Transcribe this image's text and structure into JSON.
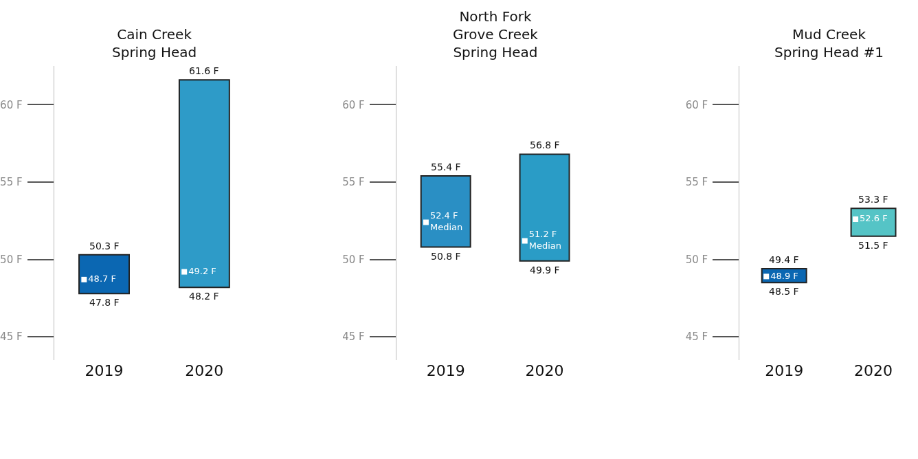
{
  "chart_data": [
    {
      "type": "bar",
      "title": "Cain Creek\nSpring Head",
      "categories": [
        "2019",
        "2020"
      ],
      "ylim": [
        43.5,
        62.5
      ],
      "yticks": [
        {
          "value": 45,
          "label": "45 F"
        },
        {
          "value": 50,
          "label": "50 F"
        },
        {
          "value": 55,
          "label": "55 F"
        },
        {
          "value": 60,
          "label": "60 F"
        }
      ],
      "colors": [
        "#0b67b2",
        "#2e9bc8"
      ],
      "base": [
        47.8,
        48.2
      ],
      "values": [
        2.5,
        13.4
      ],
      "annotations": [
        {
          "text": "50.3 F",
          "x": "2019",
          "y": 50.3
        },
        {
          "text": "61.6 F",
          "x": "2020",
          "y": 61.6
        },
        {
          "text": "47.8 F",
          "x": "2019",
          "y": 47.8
        },
        {
          "text": "48.2 F",
          "x": "2020",
          "y": 48.2
        }
      ],
      "series": [
        {
          "type": "scatter",
          "marker": "square",
          "color": "#ffffff",
          "values": [
            48.7,
            49.2
          ],
          "value_labels": [
            "48.7 F",
            "49.2 F"
          ]
        }
      ]
    },
    {
      "type": "bar",
      "title": "North Fork\nGrove Creek\nSpring Head",
      "categories": [
        "2019",
        "2020"
      ],
      "ylim": [
        43.5,
        62.5
      ],
      "yticks": [
        {
          "value": 45,
          "label": "45 F"
        },
        {
          "value": 50,
          "label": "50 F"
        },
        {
          "value": 55,
          "label": "55 F"
        },
        {
          "value": 60,
          "label": "60 F"
        }
      ],
      "colors": [
        "#2a8fc4",
        "#2a9cc6"
      ],
      "base": [
        50.8,
        49.9
      ],
      "values": [
        4.6,
        6.9
      ],
      "annotations": [
        {
          "text": "55.4 F",
          "x": "2019",
          "y": 55.4
        },
        {
          "text": "56.8 F",
          "x": "2020",
          "y": 56.8
        },
        {
          "text": "50.8 F",
          "x": "2019",
          "y": 50.8
        },
        {
          "text": "49.9 F",
          "x": "2020",
          "y": 49.9
        }
      ],
      "series": [
        {
          "type": "scatter",
          "marker": "square",
          "color": "#ffffff",
          "values": [
            52.4,
            51.2
          ],
          "value_labels": [
            "52.4 F\nMedian",
            "51.2 F\nMedian"
          ]
        }
      ]
    },
    {
      "type": "bar",
      "title": "Mud Creek\nSpring Head #1",
      "categories": [
        "2019",
        "2020"
      ],
      "ylim": [
        43.5,
        62.5
      ],
      "yticks": [
        {
          "value": 45,
          "label": "45 F"
        },
        {
          "value": 50,
          "label": "50 F"
        },
        {
          "value": 55,
          "label": "55 F"
        },
        {
          "value": 60,
          "label": "60 F"
        }
      ],
      "colors": [
        "#0b67b2",
        "#55c4c6"
      ],
      "base": [
        48.5,
        51.5
      ],
      "values": [
        0.9,
        1.8
      ],
      "annotations": [
        {
          "text": "49.4 F",
          "x": "2019",
          "y": 49.4
        },
        {
          "text": "53.3 F",
          "x": "2020",
          "y": 53.3
        },
        {
          "text": "48.5 F",
          "x": "2019",
          "y": 48.5
        },
        {
          "text": "51.5 F",
          "x": "2020",
          "y": 51.5
        }
      ],
      "series": [
        {
          "type": "scatter",
          "marker": "square",
          "color": "#ffffff",
          "values": [
            48.9,
            52.6
          ],
          "value_labels": [
            "48.9 F",
            "52.6 F"
          ]
        }
      ]
    }
  ]
}
